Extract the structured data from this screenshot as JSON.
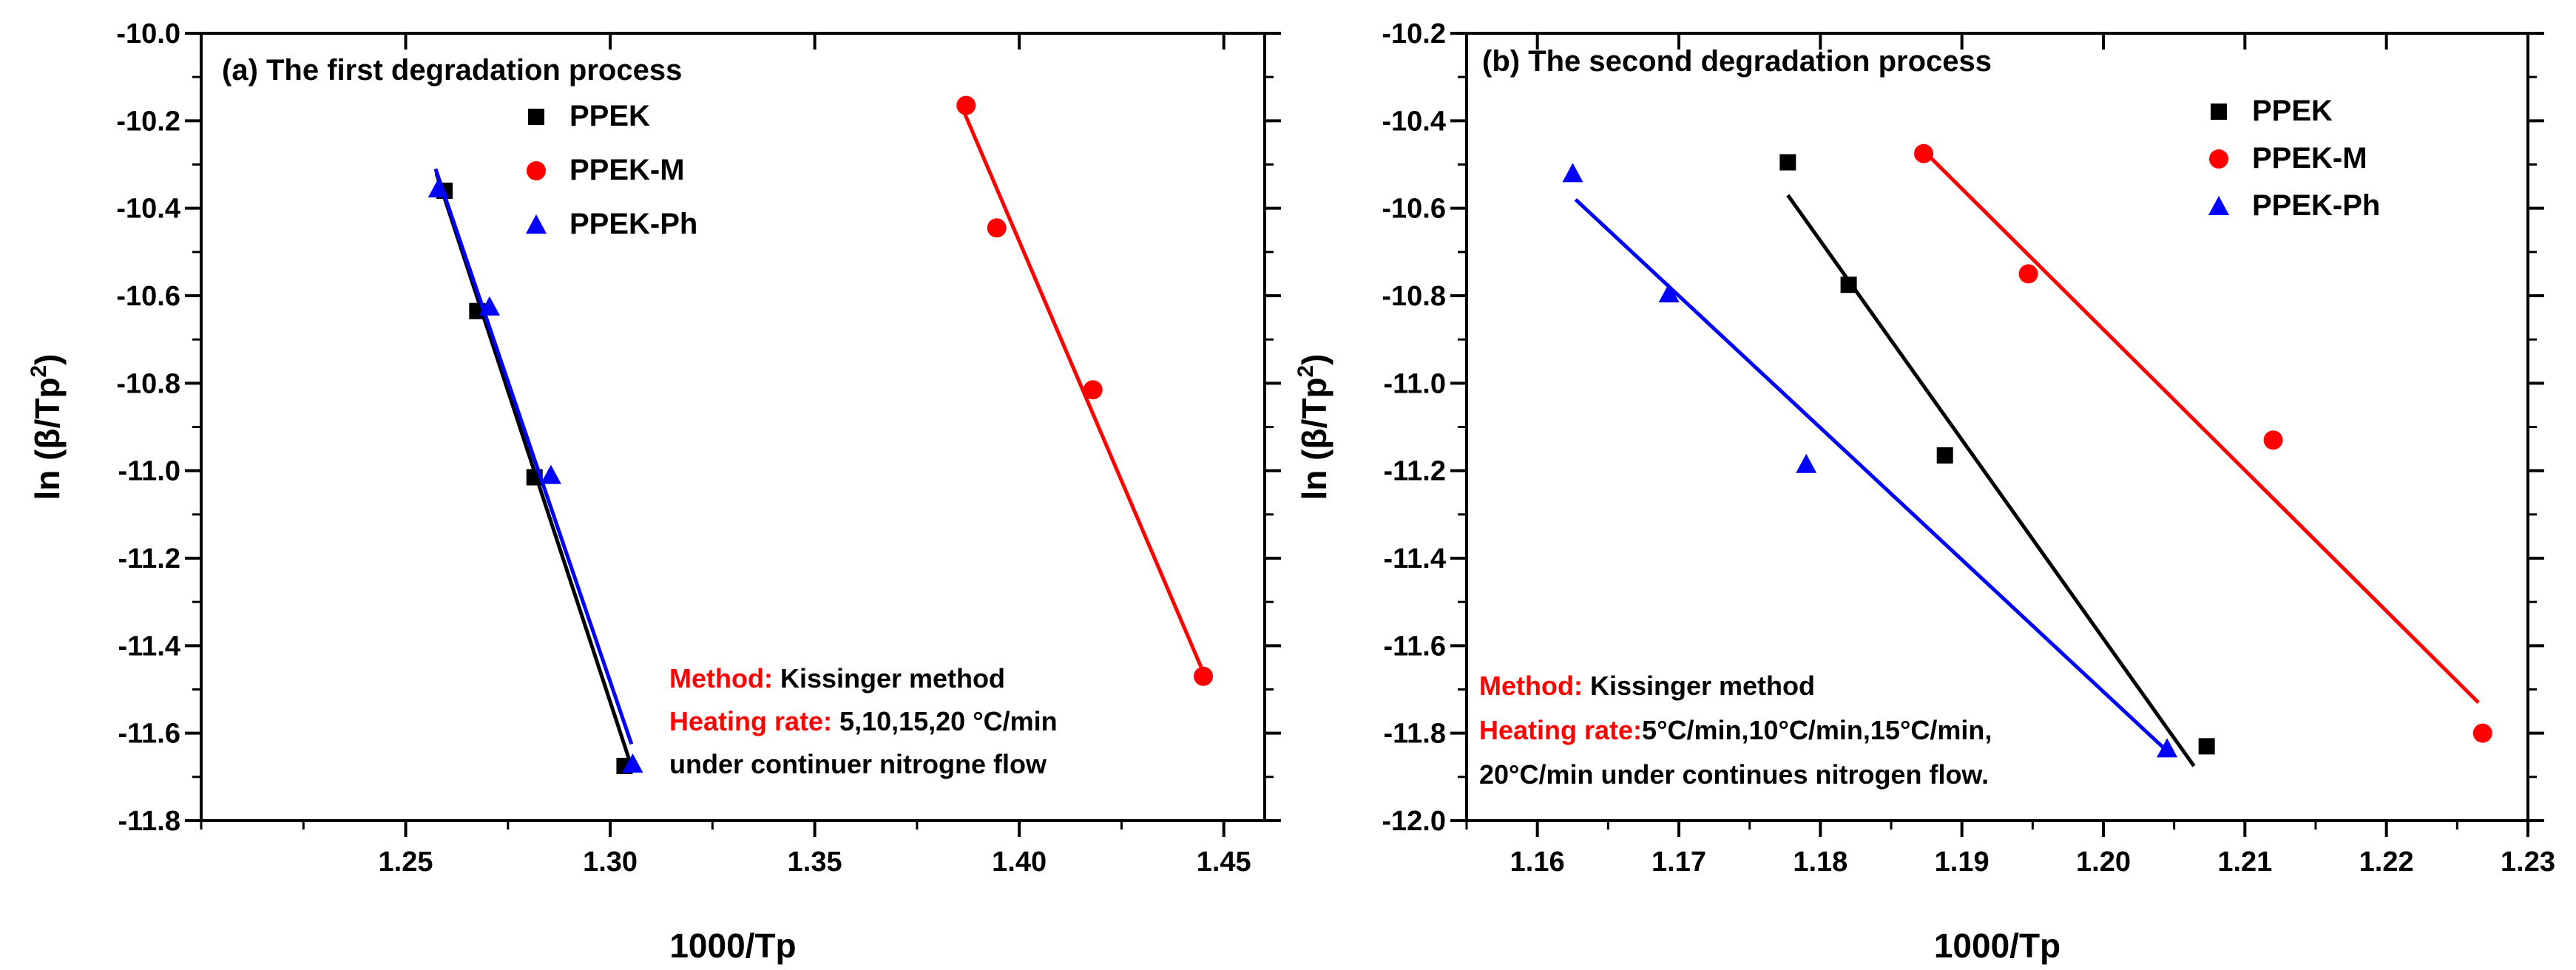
{
  "chart_data": [
    {
      "id": "a",
      "type": "scatter",
      "title": "(a) The first degradation process",
      "xlabel": "1000/Tp",
      "ylabel_main": "ln (β/Tp",
      "ylabel_sup": "2",
      "ylabel_tail": ")",
      "xlim": [
        1.2,
        1.46
      ],
      "ylim": [
        -11.8,
        -10.0
      ],
      "xticks": [
        1.25,
        1.3,
        1.35,
        1.4,
        1.45
      ],
      "xtick_labels": [
        "1.25",
        "1.30",
        "1.35",
        "1.40",
        "1.45"
      ],
      "yticks": [
        -11.8,
        -11.6,
        -11.4,
        -11.2,
        -11.0,
        -10.8,
        -10.6,
        -10.4,
        -10.2,
        -10.0
      ],
      "ytick_labels": [
        "-11.8",
        "-11.6",
        "-11.4",
        "-11.2",
        "-11.0",
        "-10.8",
        "-10.6",
        "-10.4",
        "-10.2",
        "-10.0"
      ],
      "series": [
        {
          "name": "PPEK",
          "color": "#000000",
          "marker": "square",
          "x": [
            1.2595,
            1.2675,
            1.2815,
            1.3035
          ],
          "y": [
            -10.36,
            -10.635,
            -11.015,
            -11.675
          ],
          "fit": [
            [
              1.2575,
              -10.32
            ],
            [
              1.3048,
              -11.665
            ]
          ]
        },
        {
          "name": "PPEK-M",
          "color": "#ff0000",
          "marker": "circle",
          "x": [
            1.387,
            1.3945,
            1.418,
            1.445
          ],
          "y": [
            -10.165,
            -10.445,
            -10.815,
            -11.47
          ],
          "fit": [
            [
              1.3865,
              -10.18
            ],
            [
              1.4445,
              -11.45
            ]
          ]
        },
        {
          "name": "PPEK-Ph",
          "color": "#0000ff",
          "marker": "triangle",
          "x": [
            1.258,
            1.2705,
            1.2855,
            1.3055
          ],
          "y": [
            -10.355,
            -10.625,
            -11.01,
            -11.67
          ],
          "fit": [
            [
              1.2573,
              -10.31
            ],
            [
              1.3052,
              -11.625
            ]
          ]
        }
      ],
      "legend": [
        "PPEK",
        "PPEK-M",
        "PPEK-Ph"
      ],
      "annotation": {
        "method_label": "Method:",
        "method_value": " Kissinger method",
        "rate_label": "Heating rate:",
        "rate_value": " 5,10,15,20 °C/min",
        "rate_line2": "under continuer nitrogne flow"
      }
    },
    {
      "id": "b",
      "type": "scatter",
      "title": "(b) The second degradation process",
      "xlabel": "1000/Tp",
      "ylabel_main": "ln (β/Tp",
      "ylabel_sup": "2",
      "ylabel_tail": ")",
      "xlim": [
        1.155,
        1.23
      ],
      "ylim": [
        -12.0,
        -10.2
      ],
      "xticks": [
        1.16,
        1.17,
        1.18,
        1.19,
        1.2,
        1.21,
        1.22,
        1.23
      ],
      "xtick_labels": [
        "1.16",
        "1.17",
        "1.18",
        "1.19",
        "1.20",
        "1.21",
        "1.22",
        "1.23"
      ],
      "yticks": [
        -12.0,
        -11.8,
        -11.6,
        -11.4,
        -11.2,
        -11.0,
        -10.8,
        -10.6,
        -10.4,
        -10.2
      ],
      "ytick_labels": [
        "-12.0",
        "-11.8",
        "-11.6",
        "-11.4",
        "-11.2",
        "-11.0",
        "-10.8",
        "-10.6",
        "-10.4",
        "-10.2"
      ],
      "series": [
        {
          "name": "PPEK",
          "color": "#000000",
          "marker": "square",
          "x": [
            1.1777,
            1.182,
            1.1888,
            1.2073
          ],
          "y": [
            -10.495,
            -10.775,
            -11.165,
            -11.83
          ],
          "fit": [
            [
              1.1777,
              -10.57
            ],
            [
              1.2064,
              -11.875
            ]
          ]
        },
        {
          "name": "PPEK-M",
          "color": "#ff0000",
          "marker": "circle",
          "x": [
            1.1873,
            1.1947,
            1.212,
            1.2268
          ],
          "y": [
            -10.475,
            -10.75,
            -11.13,
            -11.8
          ],
          "fit": [
            [
              1.1875,
              -10.475
            ],
            [
              1.2265,
              -11.73
            ]
          ]
        },
        {
          "name": "PPEK-Ph",
          "color": "#0000ff",
          "marker": "triangle",
          "x": [
            1.1625,
            1.1693,
            1.179,
            1.2045
          ],
          "y": [
            -10.52,
            -10.795,
            -11.185,
            -11.835
          ],
          "fit": [
            [
              1.1627,
              -10.58
            ],
            [
              1.2043,
              -11.835
            ]
          ]
        }
      ],
      "legend": [
        "PPEK",
        "PPEK-M",
        "PPEK-Ph"
      ],
      "annotation": {
        "method_label": "Method:",
        "method_value": " Kissinger method",
        "rate_label": "Heating rate:",
        "rate_value": "5°C/min,10°C/min,15°C/min,",
        "rate_line2": "20°C/min under continues nitrogen flow."
      }
    }
  ]
}
